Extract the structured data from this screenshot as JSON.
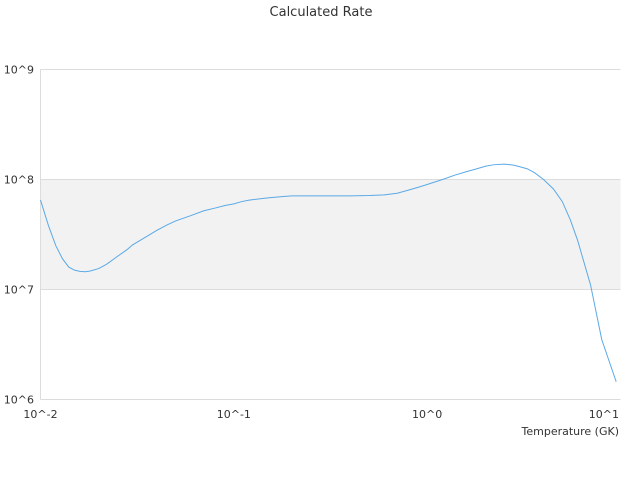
{
  "chart_data": {
    "type": "line",
    "title": "Calculated Rate",
    "xlabel": "Temperature (GK)",
    "ylabel": "",
    "x_scale": "log",
    "y_scale": "log",
    "xlim": [
      0.01,
      10
    ],
    "ylim": [
      1000000,
      1000000000
    ],
    "x_ticks": [
      0.01,
      0.1,
      1,
      10
    ],
    "x_tick_labels": [
      "10^-2",
      "10^-1",
      "10^0",
      "10^1"
    ],
    "y_ticks": [
      1000000,
      10000000,
      100000000,
      1000000000
    ],
    "y_tick_labels": [
      "10^6",
      "10^7",
      "10^8",
      "10^9"
    ],
    "line_color": "#5aa9e6",
    "band_color": "#f2f2f2",
    "series": [
      {
        "x": [
          0.01,
          0.011,
          0.012,
          0.013,
          0.014,
          0.015,
          0.016,
          0.017,
          0.018,
          0.02,
          0.022,
          0.025,
          0.028,
          0.03,
          0.035,
          0.04,
          0.045,
          0.05,
          0.06,
          0.07,
          0.08,
          0.09,
          0.1,
          0.11,
          0.12,
          0.15,
          0.18,
          0.2,
          0.25,
          0.3,
          0.4,
          0.5,
          0.6,
          0.7,
          0.8,
          0.9,
          1.0,
          1.2,
          1.4,
          1.6,
          1.8,
          2.0,
          2.2,
          2.5,
          2.8,
          3.0,
          3.3,
          3.6,
          4.0,
          4.5,
          5.0,
          5.5,
          6.0,
          7.0,
          8.0,
          9.5
        ],
        "y": [
          65000000,
          38000000,
          25000000,
          19000000,
          16000000,
          15000000,
          14600000,
          14500000,
          14700000,
          15500000,
          17000000,
          20000000,
          23000000,
          25500000,
          30000000,
          34500000,
          38500000,
          42000000,
          47000000,
          52000000,
          55000000,
          58000000,
          60000000,
          63000000,
          65000000,
          68000000,
          70000000,
          71000000,
          71000000,
          71000000,
          71000000,
          71500000,
          72500000,
          75000000,
          80000000,
          85000000,
          90000000,
          100000000,
          110000000,
          118000000,
          125000000,
          132000000,
          136000000,
          138000000,
          135000000,
          131000000,
          125000000,
          115000000,
          100000000,
          82000000,
          63000000,
          43000000,
          28000000,
          11000000,
          3500000,
          1450000
        ]
      }
    ]
  }
}
